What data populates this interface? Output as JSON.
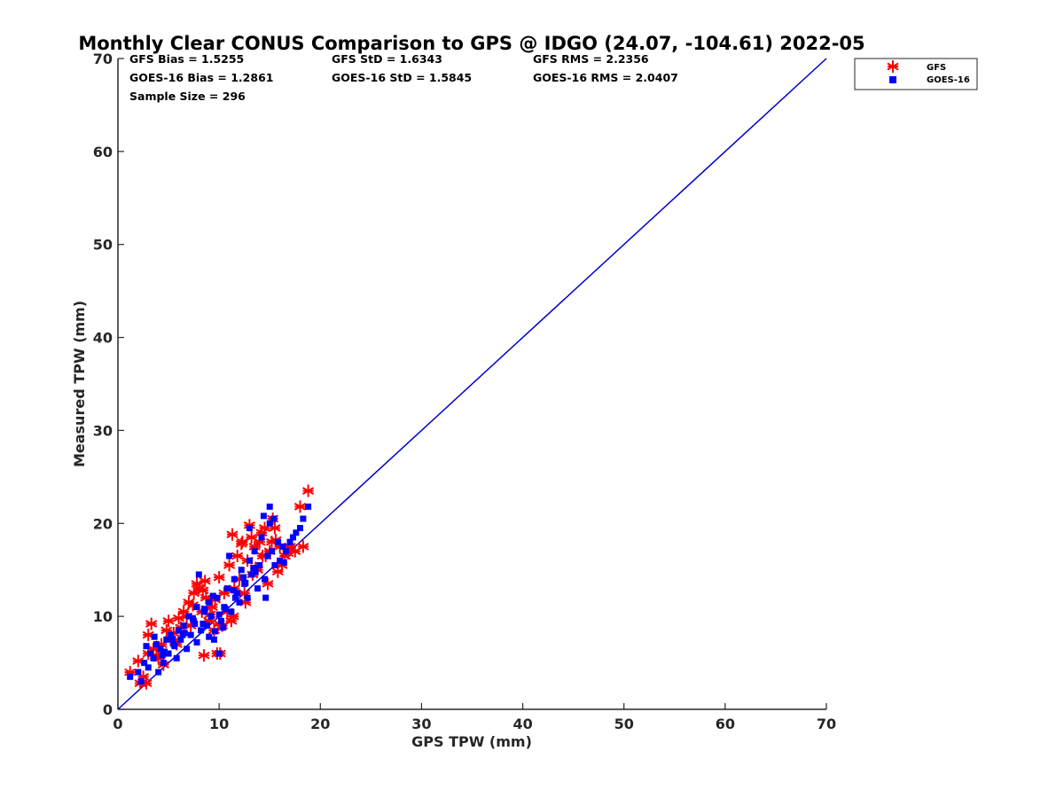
{
  "chart_data": {
    "type": "scatter",
    "title": "Monthly Clear CONUS Comparison to GPS @ IDGO (24.07, -104.61) 2022-05",
    "xlabel": "GPS TPW (mm)",
    "ylabel": "Measured TPW (mm)",
    "xlim": [
      0,
      70
    ],
    "ylim": [
      0,
      70
    ],
    "xticks": [
      "0",
      "10",
      "20",
      "30",
      "40",
      "50",
      "60",
      "70"
    ],
    "yticks": [
      "0",
      "10",
      "20",
      "30",
      "40",
      "50",
      "60",
      "70"
    ],
    "grid": false,
    "legend_position": "top-right",
    "stats": {
      "gfs_bias": "GFS Bias = 1.5255",
      "gfs_std": "GFS StD = 1.6343",
      "gfs_rms": "GFS RMS = 2.2356",
      "goes_bias": "GOES-16 Bias = 1.2861",
      "goes_std": "GOES-16 StD = 1.5845",
      "goes_rms": "GOES-16 RMS = 2.0407",
      "sample_size": "Sample Size = 296"
    },
    "reference_line": {
      "x": [
        0,
        70
      ],
      "y": [
        0,
        70
      ],
      "color": "#0000cc"
    },
    "series": [
      {
        "name": "GFS",
        "marker": "asterisk",
        "color": "#ff0000",
        "x": [
          1.2,
          2.0,
          2.5,
          2.8,
          3.0,
          3.3,
          3.5,
          4.0,
          4.3,
          4.8,
          5.0,
          5.5,
          5.8,
          6.0,
          6.5,
          7.0,
          7.2,
          7.5,
          7.8,
          8.0,
          8.3,
          8.5,
          8.7,
          9.0,
          9.3,
          9.5,
          9.8,
          10.0,
          10.3,
          10.5,
          10.8,
          11.0,
          11.3,
          11.5,
          11.8,
          12.0,
          12.3,
          12.5,
          12.8,
          13.0,
          13.3,
          13.5,
          13.8,
          14.0,
          14.3,
          14.5,
          14.8,
          15.0,
          15.3,
          15.5,
          15.8,
          16.0,
          16.5,
          17.0,
          17.5,
          18.0,
          18.3,
          18.8,
          3.0,
          4.5,
          5.2,
          6.2,
          6.8,
          7.4,
          8.4,
          9.1,
          9.6,
          10.1,
          11.2,
          12.2,
          13.2,
          14.2,
          15.2,
          16.2,
          2.2,
          3.8,
          8.6,
          10.0,
          12.6,
          14.6,
          16.8,
          11.4,
          13.6,
          15.6
        ],
        "y": [
          4.0,
          5.2,
          3.5,
          2.8,
          8.0,
          9.2,
          6.5,
          5.5,
          7.0,
          8.5,
          9.5,
          8.2,
          7.0,
          9.8,
          10.5,
          11.5,
          9.0,
          12.5,
          13.5,
          13.0,
          10.5,
          5.8,
          12.0,
          9.5,
          11.0,
          8.5,
          6.0,
          14.2,
          9.0,
          12.5,
          10.5,
          15.5,
          18.8,
          13.0,
          16.5,
          14.0,
          18.0,
          12.5,
          16.0,
          19.8,
          14.5,
          17.5,
          15.0,
          18.0,
          16.5,
          19.5,
          13.5,
          17.0,
          20.5,
          19.5,
          14.8,
          17.5,
          16.5,
          17.5,
          17.0,
          21.8,
          17.5,
          23.5,
          6.0,
          4.8,
          7.5,
          8.8,
          10.0,
          11.2,
          12.8,
          10.2,
          11.8,
          6.0,
          9.5,
          17.8,
          18.5,
          19.0,
          18.0,
          15.5,
          2.8,
          5.8,
          13.8,
          9.2,
          11.5,
          16.5,
          16.8,
          10.0,
          15.2,
          18.2
        ]
      },
      {
        "name": "GOES-16",
        "marker": "square",
        "color": "#0000ff",
        "x": [
          1.2,
          2.0,
          2.3,
          2.6,
          3.0,
          3.2,
          3.5,
          3.8,
          4.0,
          4.2,
          4.5,
          4.8,
          5.0,
          5.2,
          5.5,
          5.8,
          6.0,
          6.2,
          6.5,
          6.8,
          7.0,
          7.2,
          7.5,
          7.8,
          8.0,
          8.2,
          8.5,
          8.8,
          9.0,
          9.2,
          9.5,
          9.8,
          10.0,
          10.2,
          10.5,
          10.8,
          11.0,
          11.2,
          11.5,
          11.8,
          12.0,
          12.2,
          12.5,
          12.8,
          13.0,
          13.2,
          13.5,
          13.8,
          14.0,
          14.2,
          14.5,
          14.8,
          15.0,
          15.2,
          15.5,
          15.8,
          16.0,
          16.3,
          16.6,
          17.0,
          17.3,
          17.6,
          18.0,
          18.3,
          18.8,
          2.8,
          3.6,
          4.4,
          5.6,
          6.6,
          7.6,
          8.6,
          9.4,
          10.4,
          11.4,
          12.4,
          13.4,
          14.4,
          15.4,
          16.4,
          7.8,
          9.0,
          10.0,
          13.0,
          14.6,
          15.0,
          4.6,
          5.4,
          6.4,
          7.4,
          8.4,
          9.6,
          10.6,
          11.6,
          12.6,
          13.6
        ],
        "y": [
          3.5,
          4.0,
          3.0,
          5.0,
          4.5,
          6.0,
          5.5,
          7.0,
          4.0,
          6.5,
          5.0,
          7.5,
          6.0,
          8.0,
          7.0,
          5.5,
          8.5,
          7.5,
          9.0,
          6.5,
          10.0,
          8.0,
          9.5,
          11.0,
          14.5,
          8.5,
          10.5,
          9.0,
          11.5,
          10.0,
          7.5,
          12.0,
          6.0,
          9.5,
          11.0,
          13.0,
          16.5,
          10.5,
          14.0,
          12.5,
          11.5,
          15.0,
          13.5,
          12.0,
          16.0,
          14.5,
          17.0,
          13.0,
          15.5,
          18.5,
          14.0,
          16.5,
          21.8,
          17.0,
          15.5,
          18.0,
          16.0,
          17.5,
          17.0,
          18.0,
          18.5,
          19.0,
          19.5,
          20.5,
          21.8,
          6.8,
          7.8,
          5.8,
          6.8,
          8.2,
          9.2,
          10.8,
          12.2,
          8.8,
          12.8,
          14.2,
          15.2,
          20.8,
          20.5,
          15.8,
          7.2,
          7.8,
          10.2,
          19.5,
          12.0,
          20.0,
          6.2,
          7.6,
          8.0,
          9.8,
          9.2,
          8.4,
          10.8,
          12.0,
          13.6,
          14.8
        ]
      }
    ]
  }
}
